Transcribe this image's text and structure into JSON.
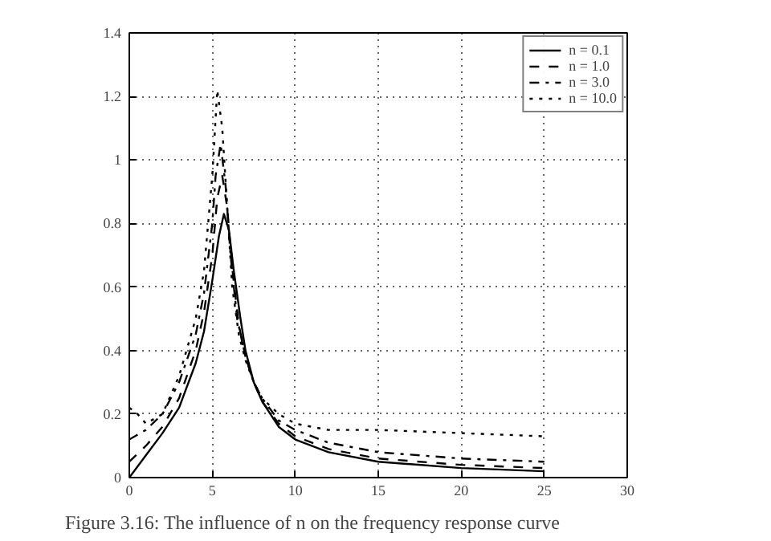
{
  "chart_data": {
    "type": "line",
    "annotations": [
      "Figure 3.16: The influence of n on the frequency response curve"
    ],
    "xlim": [
      0,
      30
    ],
    "ylim": [
      0,
      1.4
    ],
    "xticks": [
      0,
      5,
      10,
      15,
      20,
      25,
      30
    ],
    "yticks": [
      0,
      0.2,
      0.4,
      0.6,
      0.8,
      1,
      1.2,
      1.4
    ],
    "grid": true,
    "legend": "top right",
    "series": [
      {
        "name": "n = 0.1",
        "color": "#000000",
        "line_style": "solid",
        "x": [
          0,
          1,
          2,
          3,
          4,
          4.5,
          5,
          5.4,
          5.7,
          6,
          6.3,
          6.7,
          7,
          7.5,
          8,
          9,
          10,
          12,
          15,
          20,
          25
        ],
        "values": [
          0,
          0.07,
          0.14,
          0.22,
          0.36,
          0.46,
          0.62,
          0.76,
          0.83,
          0.78,
          0.65,
          0.5,
          0.4,
          0.3,
          0.24,
          0.16,
          0.12,
          0.08,
          0.05,
          0.03,
          0.02
        ]
      },
      {
        "name": "n = 1.0",
        "color": "#000000",
        "line_style": "dashed",
        "x": [
          0,
          1,
          2,
          3,
          4,
          4.5,
          5,
          5.3,
          5.6,
          5.9,
          6.2,
          6.6,
          7,
          7.5,
          8,
          9,
          10,
          12,
          15,
          20,
          25
        ],
        "values": [
          0.05,
          0.1,
          0.16,
          0.25,
          0.4,
          0.52,
          0.7,
          0.88,
          0.95,
          0.85,
          0.66,
          0.48,
          0.38,
          0.3,
          0.24,
          0.17,
          0.13,
          0.09,
          0.06,
          0.04,
          0.03
        ]
      },
      {
        "name": "n = 3.0",
        "color": "#000000",
        "line_style": "dashdot",
        "x": [
          0,
          1,
          2,
          3,
          4,
          4.5,
          5,
          5.2,
          5.5,
          5.8,
          6.1,
          6.5,
          7,
          7.5,
          8,
          9,
          10,
          12,
          15,
          20,
          25
        ],
        "values": [
          0.12,
          0.15,
          0.2,
          0.3,
          0.45,
          0.58,
          0.8,
          0.95,
          1.05,
          0.92,
          0.7,
          0.5,
          0.38,
          0.3,
          0.25,
          0.18,
          0.15,
          0.11,
          0.08,
          0.06,
          0.05
        ]
      },
      {
        "name": "n = 10.0",
        "color": "#000000",
        "line_style": "dotted",
        "x": [
          0,
          0.5,
          1,
          2,
          3,
          4,
          4.5,
          5,
          5.3,
          5.6,
          5.9,
          6.2,
          6.6,
          7,
          7.5,
          8,
          9,
          10,
          12,
          15,
          20,
          25
        ],
        "values": [
          0.22,
          0.2,
          0.17,
          0.2,
          0.32,
          0.5,
          0.65,
          0.95,
          1.22,
          1.1,
          0.85,
          0.6,
          0.45,
          0.37,
          0.3,
          0.25,
          0.2,
          0.17,
          0.15,
          0.15,
          0.14,
          0.13
        ]
      }
    ]
  }
}
